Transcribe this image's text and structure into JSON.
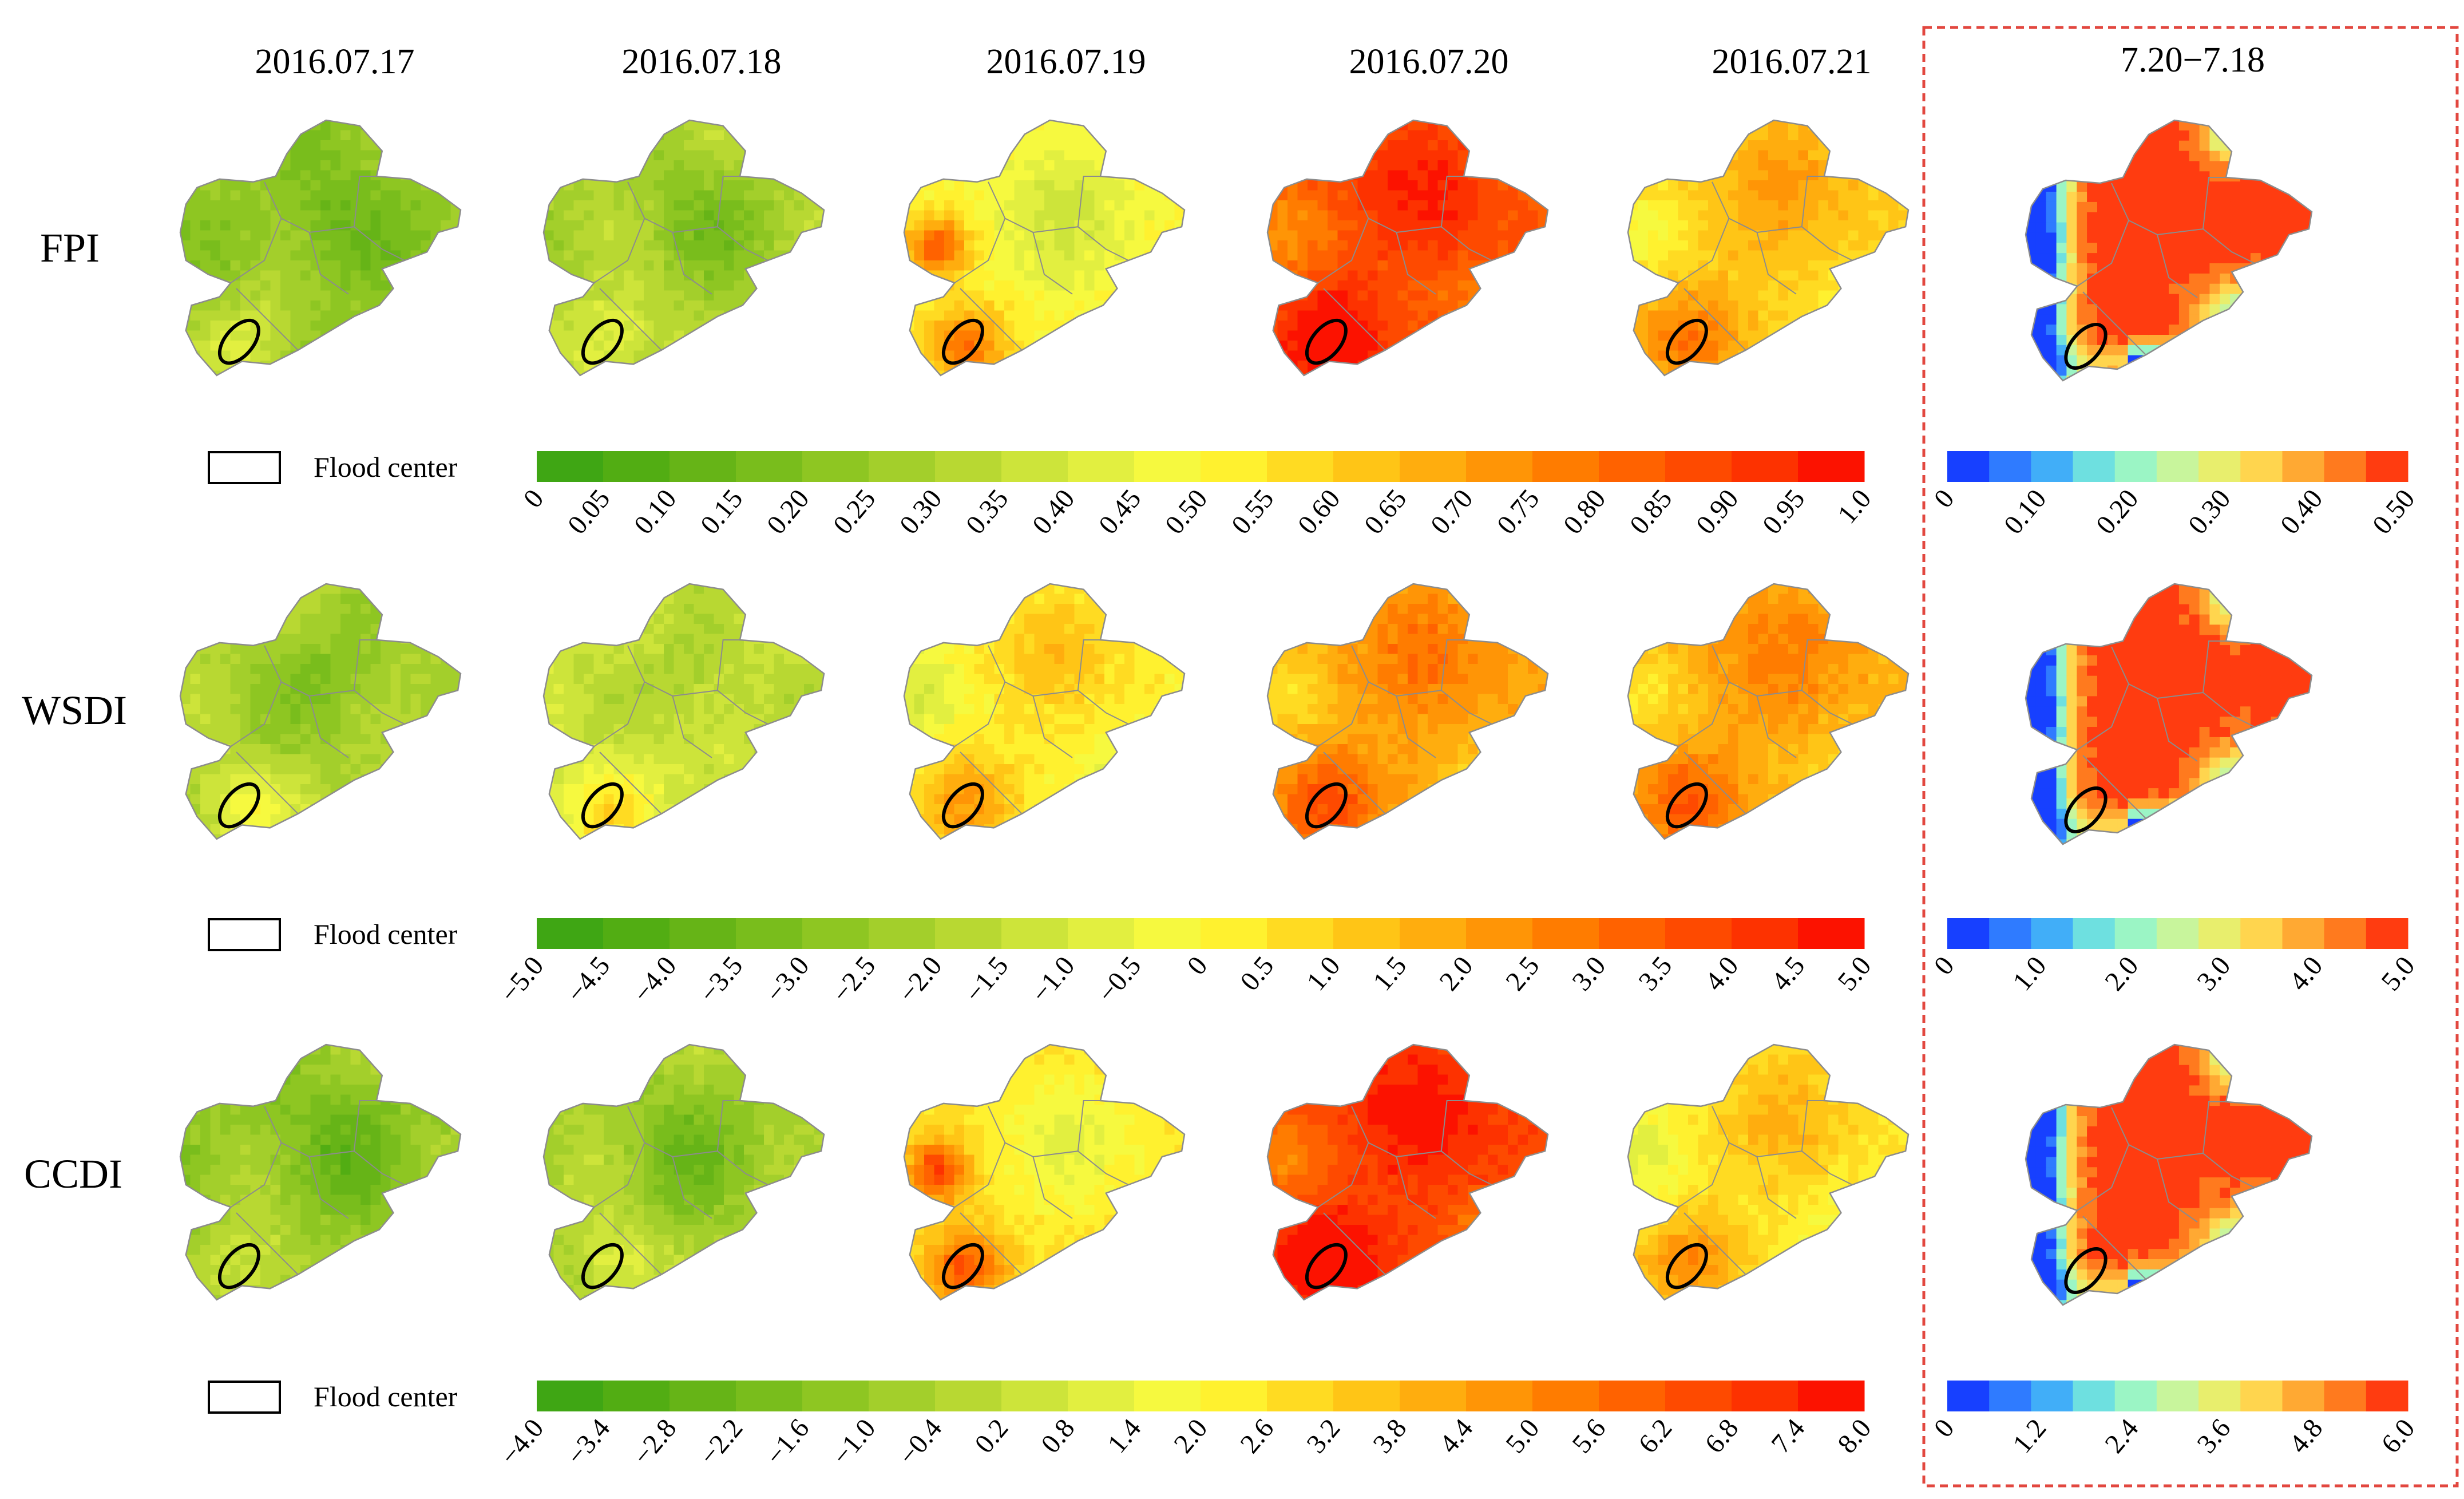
{
  "figure": {
    "dates": [
      "2016.07.17",
      "2016.07.18",
      "2016.07.19",
      "2016.07.20",
      "2016.07.21"
    ],
    "diff_title": "7.20−7.18",
    "legend_label": "Flood center",
    "rows": [
      {
        "index_name": "FPI",
        "map_intensity": [
          0.25,
          0.3,
          0.5,
          0.85,
          0.6
        ],
        "main_ticks": [
          "0",
          "0.05",
          "0.10",
          "0.15",
          "0.20",
          "0.25",
          "0.30",
          "0.35",
          "0.40",
          "0.45",
          "0.50",
          "0.55",
          "0.60",
          "0.65",
          "0.70",
          "0.75",
          "0.80",
          "0.85",
          "0.90",
          "0.95",
          "1.0"
        ],
        "diff_ticks": [
          "0",
          "0.10",
          "0.20",
          "0.30",
          "0.40",
          "0.50"
        ]
      },
      {
        "index_name": "WSDI",
        "map_intensity": [
          0.3,
          0.38,
          0.52,
          0.68,
          0.66
        ],
        "main_ticks": [
          "−5.0",
          "−4.5",
          "−4.0",
          "−3.5",
          "−3.0",
          "−2.5",
          "−2.0",
          "−1.5",
          "−1.0",
          "−0.5",
          "0",
          "0.5",
          "1.0",
          "1.5",
          "2.0",
          "2.5",
          "3.0",
          "3.5",
          "4.0",
          "4.5",
          "5.0"
        ],
        "diff_ticks": [
          "0",
          "1.0",
          "2.0",
          "3.0",
          "4.0",
          "5.0"
        ]
      },
      {
        "index_name": "CCDI",
        "map_intensity": [
          0.25,
          0.28,
          0.55,
          0.88,
          0.55
        ],
        "main_ticks": [
          "−4.0",
          "−3.4",
          "−2.8",
          "−2.2",
          "−1.6",
          "−1.0",
          "−0.4",
          "0.2",
          "0.8",
          "1.4",
          "2.0",
          "2.6",
          "3.2",
          "3.8",
          "4.4",
          "5.0",
          "5.6",
          "6.2",
          "6.8",
          "7.4",
          "8.0"
        ],
        "diff_ticks": [
          "0",
          "1.2",
          "2.4",
          "3.6",
          "4.8",
          "6.0"
        ]
      }
    ],
    "colors": {
      "main_ramp": [
        "#3fa614",
        "#52ad13",
        "#66b417",
        "#79bd1c",
        "#8ec622",
        "#a3cf2b",
        "#b8d832",
        "#cde43a",
        "#e2ef40",
        "#f6f93f",
        "#fff12f",
        "#ffdb22",
        "#ffc516",
        "#ffad0e",
        "#ff9506",
        "#ff7c00",
        "#ff6200",
        "#fe4a00",
        "#fd3200",
        "#fc1200"
      ],
      "diff_ramp": [
        "#1740ff",
        "#2f7bff",
        "#41aef8",
        "#6ee0e0",
        "#9bf5c5",
        "#c8f59c",
        "#e8ee6d",
        "#ffd54e",
        "#ffa933",
        "#ff7a1e",
        "#ff3c10"
      ],
      "frame_dash": "#e2473f",
      "boundary": "#8c8c8c"
    }
  }
}
